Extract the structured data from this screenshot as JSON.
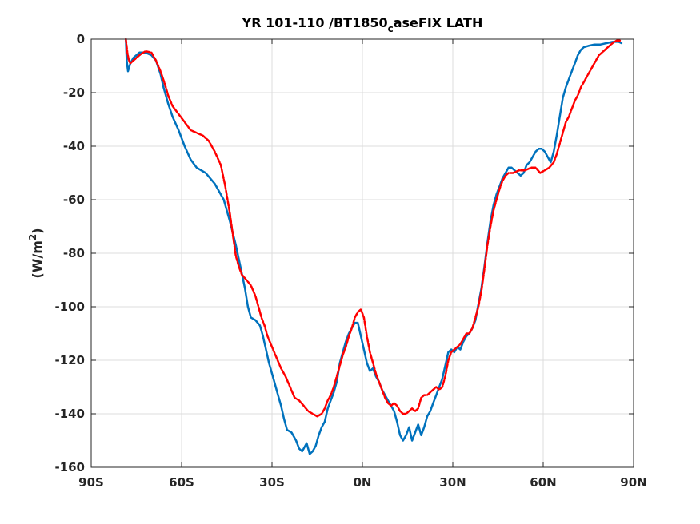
{
  "chart_data": {
    "type": "line",
    "title": {
      "main": "YR 101-110 /BT1850",
      "subscript": "c",
      "rest": "aseFIX LATH"
    },
    "ylabel": {
      "main": "(W/m",
      "sup": "2",
      "end": ")"
    },
    "xlabel": "",
    "xlim": [
      -90,
      90
    ],
    "ylim": [
      -160,
      0
    ],
    "grid": true,
    "x_ticks": [
      -90,
      -60,
      -30,
      0,
      30,
      60,
      90
    ],
    "x_tick_labels": [
      "90S",
      "60S",
      "30S",
      "0N",
      "30N",
      "60N",
      "90N"
    ],
    "y_ticks": [
      0,
      -20,
      -40,
      -60,
      -80,
      -100,
      -120,
      -140,
      -160
    ],
    "y_tick_labels": [
      "0",
      "-20",
      "-40",
      "-60",
      "-80",
      "-100",
      "-120",
      "-140",
      "-160"
    ],
    "series": [
      {
        "color": "#0072BD",
        "style": "solid",
        "points": [
          [
            -78.5,
            0
          ],
          [
            -78.2,
            -8
          ],
          [
            -77.8,
            -12
          ],
          [
            -77,
            -9
          ],
          [
            -76,
            -7
          ],
          [
            -74,
            -5
          ],
          [
            -72,
            -5
          ],
          [
            -70,
            -6
          ],
          [
            -68.5,
            -8
          ],
          [
            -67,
            -13
          ],
          [
            -66,
            -18
          ],
          [
            -64.5,
            -24
          ],
          [
            -63,
            -29
          ],
          [
            -61,
            -34
          ],
          [
            -59,
            -40
          ],
          [
            -57,
            -45
          ],
          [
            -55,
            -48
          ],
          [
            -52,
            -50
          ],
          [
            -49,
            -54
          ],
          [
            -46,
            -60
          ],
          [
            -44,
            -68
          ],
          [
            -42,
            -77
          ],
          [
            -40.5,
            -85
          ],
          [
            -39,
            -93
          ],
          [
            -38,
            -100
          ],
          [
            -37,
            -104
          ],
          [
            -35.5,
            -105
          ],
          [
            -34,
            -107
          ],
          [
            -33,
            -111
          ],
          [
            -32,
            -116
          ],
          [
            -31,
            -121
          ],
          [
            -29.5,
            -127
          ],
          [
            -28,
            -133
          ],
          [
            -27,
            -137
          ],
          [
            -26,
            -142
          ],
          [
            -25,
            -146
          ],
          [
            -23.5,
            -147
          ],
          [
            -22,
            -150
          ],
          [
            -21,
            -153
          ],
          [
            -20,
            -154
          ],
          [
            -19.5,
            -153
          ],
          [
            -18.5,
            -151
          ],
          [
            -17.5,
            -155
          ],
          [
            -16.5,
            -154
          ],
          [
            -15.5,
            -152
          ],
          [
            -14.5,
            -148
          ],
          [
            -13.5,
            -145
          ],
          [
            -12.5,
            -143
          ],
          [
            -11.5,
            -138
          ],
          [
            -10.5,
            -135
          ],
          [
            -9.5,
            -132
          ],
          [
            -8.5,
            -128
          ],
          [
            -7.5,
            -121
          ],
          [
            -6.5,
            -117
          ],
          [
            -5.5,
            -113
          ],
          [
            -4.5,
            -110
          ],
          [
            -3.5,
            -108
          ],
          [
            -2.5,
            -106
          ],
          [
            -1.5,
            -106
          ],
          [
            -0.5,
            -111
          ],
          [
            0.5,
            -116
          ],
          [
            1.5,
            -121
          ],
          [
            2.5,
            -124
          ],
          [
            3.5,
            -123
          ],
          [
            4.5,
            -126
          ],
          [
            5.5,
            -128
          ],
          [
            6.5,
            -131
          ],
          [
            7.5,
            -133
          ],
          [
            8.5,
            -135
          ],
          [
            9.5,
            -137
          ],
          [
            10.5,
            -139
          ],
          [
            11.5,
            -143
          ],
          [
            12.5,
            -148
          ],
          [
            13.5,
            -150
          ],
          [
            14.5,
            -148
          ],
          [
            15.5,
            -145
          ],
          [
            16.5,
            -150
          ],
          [
            17.5,
            -147
          ],
          [
            18.5,
            -144
          ],
          [
            19.5,
            -148
          ],
          [
            20.5,
            -145
          ],
          [
            21.5,
            -141
          ],
          [
            22.5,
            -139
          ],
          [
            23.5,
            -136
          ],
          [
            24.5,
            -133
          ],
          [
            25.5,
            -130
          ],
          [
            26.5,
            -127
          ],
          [
            27.5,
            -122
          ],
          [
            28.5,
            -117
          ],
          [
            29.5,
            -116
          ],
          [
            30.5,
            -117
          ],
          [
            31.5,
            -115
          ],
          [
            32.5,
            -116
          ],
          [
            33.5,
            -113
          ],
          [
            34.5,
            -111
          ],
          [
            35.5,
            -110
          ],
          [
            36.5,
            -108
          ],
          [
            37.5,
            -105
          ],
          [
            38.5,
            -99
          ],
          [
            39.5,
            -93
          ],
          [
            40.5,
            -85
          ],
          [
            41.5,
            -76
          ],
          [
            42.5,
            -68
          ],
          [
            43.5,
            -62
          ],
          [
            44.5,
            -58
          ],
          [
            45.5,
            -55
          ],
          [
            46.5,
            -52
          ],
          [
            47.5,
            -50
          ],
          [
            48.5,
            -48
          ],
          [
            49.5,
            -48
          ],
          [
            50.5,
            -49
          ],
          [
            51.5,
            -50
          ],
          [
            52.5,
            -51
          ],
          [
            53.5,
            -50
          ],
          [
            54.5,
            -47
          ],
          [
            55.5,
            -46
          ],
          [
            56.5,
            -44
          ],
          [
            57.5,
            -42
          ],
          [
            58.5,
            -41
          ],
          [
            59.5,
            -41
          ],
          [
            60.5,
            -42
          ],
          [
            61.5,
            -44
          ],
          [
            62.5,
            -46
          ],
          [
            63.5,
            -42
          ],
          [
            64.5,
            -36
          ],
          [
            65.5,
            -29
          ],
          [
            66.5,
            -22
          ],
          [
            67.5,
            -18
          ],
          [
            68.5,
            -15
          ],
          [
            69.5,
            -12
          ],
          [
            70.5,
            -9
          ],
          [
            71.5,
            -6
          ],
          [
            72.5,
            -4
          ],
          [
            73.5,
            -3
          ],
          [
            75,
            -2.5
          ],
          [
            77,
            -2
          ],
          [
            79,
            -2
          ],
          [
            81,
            -1.5
          ],
          [
            83,
            -1
          ],
          [
            85,
            -1
          ],
          [
            86,
            -1.5
          ]
        ]
      },
      {
        "color": "#FF0000",
        "style": "dashed",
        "points": [
          [
            -78.5,
            0
          ],
          [
            -78,
            -5
          ],
          [
            -77.5,
            -8
          ],
          [
            -77,
            -9
          ],
          [
            -76,
            -8
          ],
          [
            -75,
            -7
          ],
          [
            -74,
            -6
          ],
          [
            -72,
            -4.5
          ],
          [
            -70,
            -5
          ],
          [
            -68.5,
            -8
          ],
          [
            -67,
            -12
          ],
          [
            -65.5,
            -17
          ],
          [
            -64.5,
            -21
          ],
          [
            -63,
            -25
          ],
          [
            -61,
            -28
          ],
          [
            -59,
            -31
          ],
          [
            -57,
            -34
          ],
          [
            -55,
            -35
          ],
          [
            -53,
            -36
          ],
          [
            -51,
            -38
          ],
          [
            -49,
            -42
          ],
          [
            -47,
            -47
          ],
          [
            -45.5,
            -55
          ],
          [
            -44,
            -65
          ],
          [
            -43,
            -73
          ],
          [
            -42,
            -81
          ],
          [
            -41,
            -85
          ],
          [
            -40,
            -88
          ],
          [
            -38.5,
            -90
          ],
          [
            -37,
            -92
          ],
          [
            -35.5,
            -96
          ],
          [
            -34.5,
            -100
          ],
          [
            -33.5,
            -104
          ],
          [
            -32.5,
            -107
          ],
          [
            -31.5,
            -111
          ],
          [
            -30,
            -115
          ],
          [
            -28.5,
            -119
          ],
          [
            -27,
            -123
          ],
          [
            -25.5,
            -126
          ],
          [
            -24,
            -130
          ],
          [
            -22.5,
            -134
          ],
          [
            -21,
            -135
          ],
          [
            -19.5,
            -137
          ],
          [
            -18,
            -139
          ],
          [
            -16.5,
            -140
          ],
          [
            -15,
            -141
          ],
          [
            -13.5,
            -140
          ],
          [
            -12.5,
            -138
          ],
          [
            -11.5,
            -135
          ],
          [
            -10.5,
            -133
          ],
          [
            -9.5,
            -130
          ],
          [
            -8.5,
            -126
          ],
          [
            -7.5,
            -122
          ],
          [
            -6.5,
            -118
          ],
          [
            -5.5,
            -115
          ],
          [
            -4.5,
            -111
          ],
          [
            -3.5,
            -108
          ],
          [
            -2.5,
            -104
          ],
          [
            -1.5,
            -102
          ],
          [
            -0.5,
            -101
          ],
          [
            0.5,
            -104
          ],
          [
            1.5,
            -111
          ],
          [
            2.5,
            -117
          ],
          [
            3.5,
            -121
          ],
          [
            4.5,
            -125
          ],
          [
            5.5,
            -128
          ],
          [
            6.5,
            -131
          ],
          [
            7.5,
            -134
          ],
          [
            8.5,
            -136
          ],
          [
            9.5,
            -137
          ],
          [
            10.5,
            -136
          ],
          [
            11.5,
            -137
          ],
          [
            12.5,
            -139
          ],
          [
            13.5,
            -140
          ],
          [
            14.5,
            -140
          ],
          [
            15.5,
            -139
          ],
          [
            16.5,
            -138
          ],
          [
            17.5,
            -139
          ],
          [
            18.5,
            -138
          ],
          [
            19.5,
            -134
          ],
          [
            20.5,
            -133
          ],
          [
            21.5,
            -133
          ],
          [
            22.5,
            -132
          ],
          [
            23.5,
            -131
          ],
          [
            24.5,
            -130
          ],
          [
            25.5,
            -131
          ],
          [
            26.5,
            -130
          ],
          [
            27.5,
            -126
          ],
          [
            28.5,
            -120
          ],
          [
            29.5,
            -117
          ],
          [
            30.5,
            -116
          ],
          [
            31.5,
            -115
          ],
          [
            32.5,
            -114
          ],
          [
            33.5,
            -112
          ],
          [
            34.5,
            -110
          ],
          [
            35.5,
            -110
          ],
          [
            36.5,
            -108
          ],
          [
            37.5,
            -104
          ],
          [
            38.5,
            -100
          ],
          [
            39.5,
            -94
          ],
          [
            40.5,
            -86
          ],
          [
            41.5,
            -77
          ],
          [
            42.5,
            -70
          ],
          [
            43.5,
            -64
          ],
          [
            44.5,
            -60
          ],
          [
            45.5,
            -56
          ],
          [
            46.5,
            -53
          ],
          [
            47.5,
            -51
          ],
          [
            48.5,
            -50
          ],
          [
            50,
            -50
          ],
          [
            52,
            -49
          ],
          [
            54,
            -49
          ],
          [
            56,
            -48
          ],
          [
            57.5,
            -48
          ],
          [
            59,
            -50
          ],
          [
            60.5,
            -49
          ],
          [
            62,
            -48
          ],
          [
            63.5,
            -46
          ],
          [
            64.5,
            -43
          ],
          [
            65.5,
            -39
          ],
          [
            66.5,
            -35
          ],
          [
            67.5,
            -31
          ],
          [
            68.5,
            -29
          ],
          [
            69.5,
            -26
          ],
          [
            70.5,
            -23
          ],
          [
            71.5,
            -21
          ],
          [
            72.5,
            -18
          ],
          [
            73.5,
            -16
          ],
          [
            74.5,
            -14
          ],
          [
            75.5,
            -12
          ],
          [
            76.5,
            -10
          ],
          [
            77.5,
            -8
          ],
          [
            78.5,
            -6
          ],
          [
            79.5,
            -5
          ],
          [
            80.5,
            -4
          ],
          [
            81.5,
            -3
          ],
          [
            82.5,
            -2
          ],
          [
            83.5,
            -1
          ],
          [
            84.5,
            -0.5
          ],
          [
            85.5,
            -0.5
          ]
        ]
      }
    ]
  }
}
